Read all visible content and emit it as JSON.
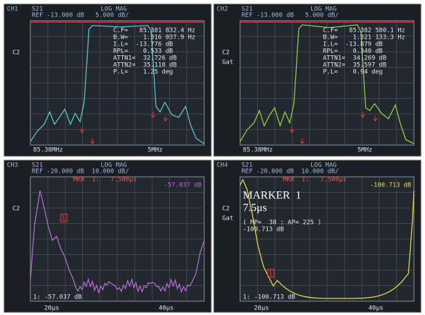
{
  "panels": [
    {
      "channel": "CH1",
      "param": "S21",
      "format": "LOG MAG",
      "ref": "REF -13.000 dB   5.000 dB/",
      "side": [
        "C2"
      ],
      "readout": [
        "C.F=   85.381 832.4 Hz",
        "B.W=    1.316 037.9 Hz",
        "I.L=  -13.776 dB",
        "RPL=    0.533 dB",
        "ATTN1=  32.726 dB",
        "ATTN2=  35.118 dB",
        "P.L=    1.25 deg"
      ],
      "footer": [
        "85.38MHz",
        "5MHz"
      ]
    },
    {
      "channel": "CH2",
      "param": "S21",
      "format": "LOG MAG",
      "ref": "REF -13.000 dB   5.000 dB/",
      "side": [
        "C2",
        "Gat"
      ],
      "readout": [
        "C.F=   85.382 580.1 Hz",
        "B.W=    1.321 133.3 Hz",
        "I.L=  -13.879 dB",
        "RPL=    0.340 dB",
        "ATTN1=  34.269 dB",
        "ATTN2=  35.597 dB",
        "P.L=    0.94 deg"
      ],
      "footer": [
        "85.38MHz",
        "5MHz"
      ]
    },
    {
      "channel": "CH3",
      "param": "S21",
      "format": "LOG MAG",
      "ref": "REF -20.000 dB  10.000 dB/",
      "side": [
        "C2"
      ],
      "marker": "MKR  1:   7.500μs",
      "marker_value": "-57.037 dB",
      "marker_id": "1",
      "footer": [
        "1: -57.037 dB",
        "20μs",
        "40μs"
      ]
    },
    {
      "channel": "CH4",
      "param": "S21",
      "format": "LOG MAG",
      "ref": "REF -20.000 dB  10.000 dB/",
      "side": [
        "C2",
        "Gat"
      ],
      "marker": "MKR  1:   7.500μs",
      "marker_value": "-100.713 dB",
      "marker_id": "1",
      "big_readout": [
        "MARKER  1",
        "7.5μs"
      ],
      "readout": [
        "( MP=  38 ; AP= 225 )",
        "-100.713 dB"
      ],
      "footer": [
        "1: -100.713 dB",
        "20μs",
        "40μs"
      ]
    }
  ]
}
